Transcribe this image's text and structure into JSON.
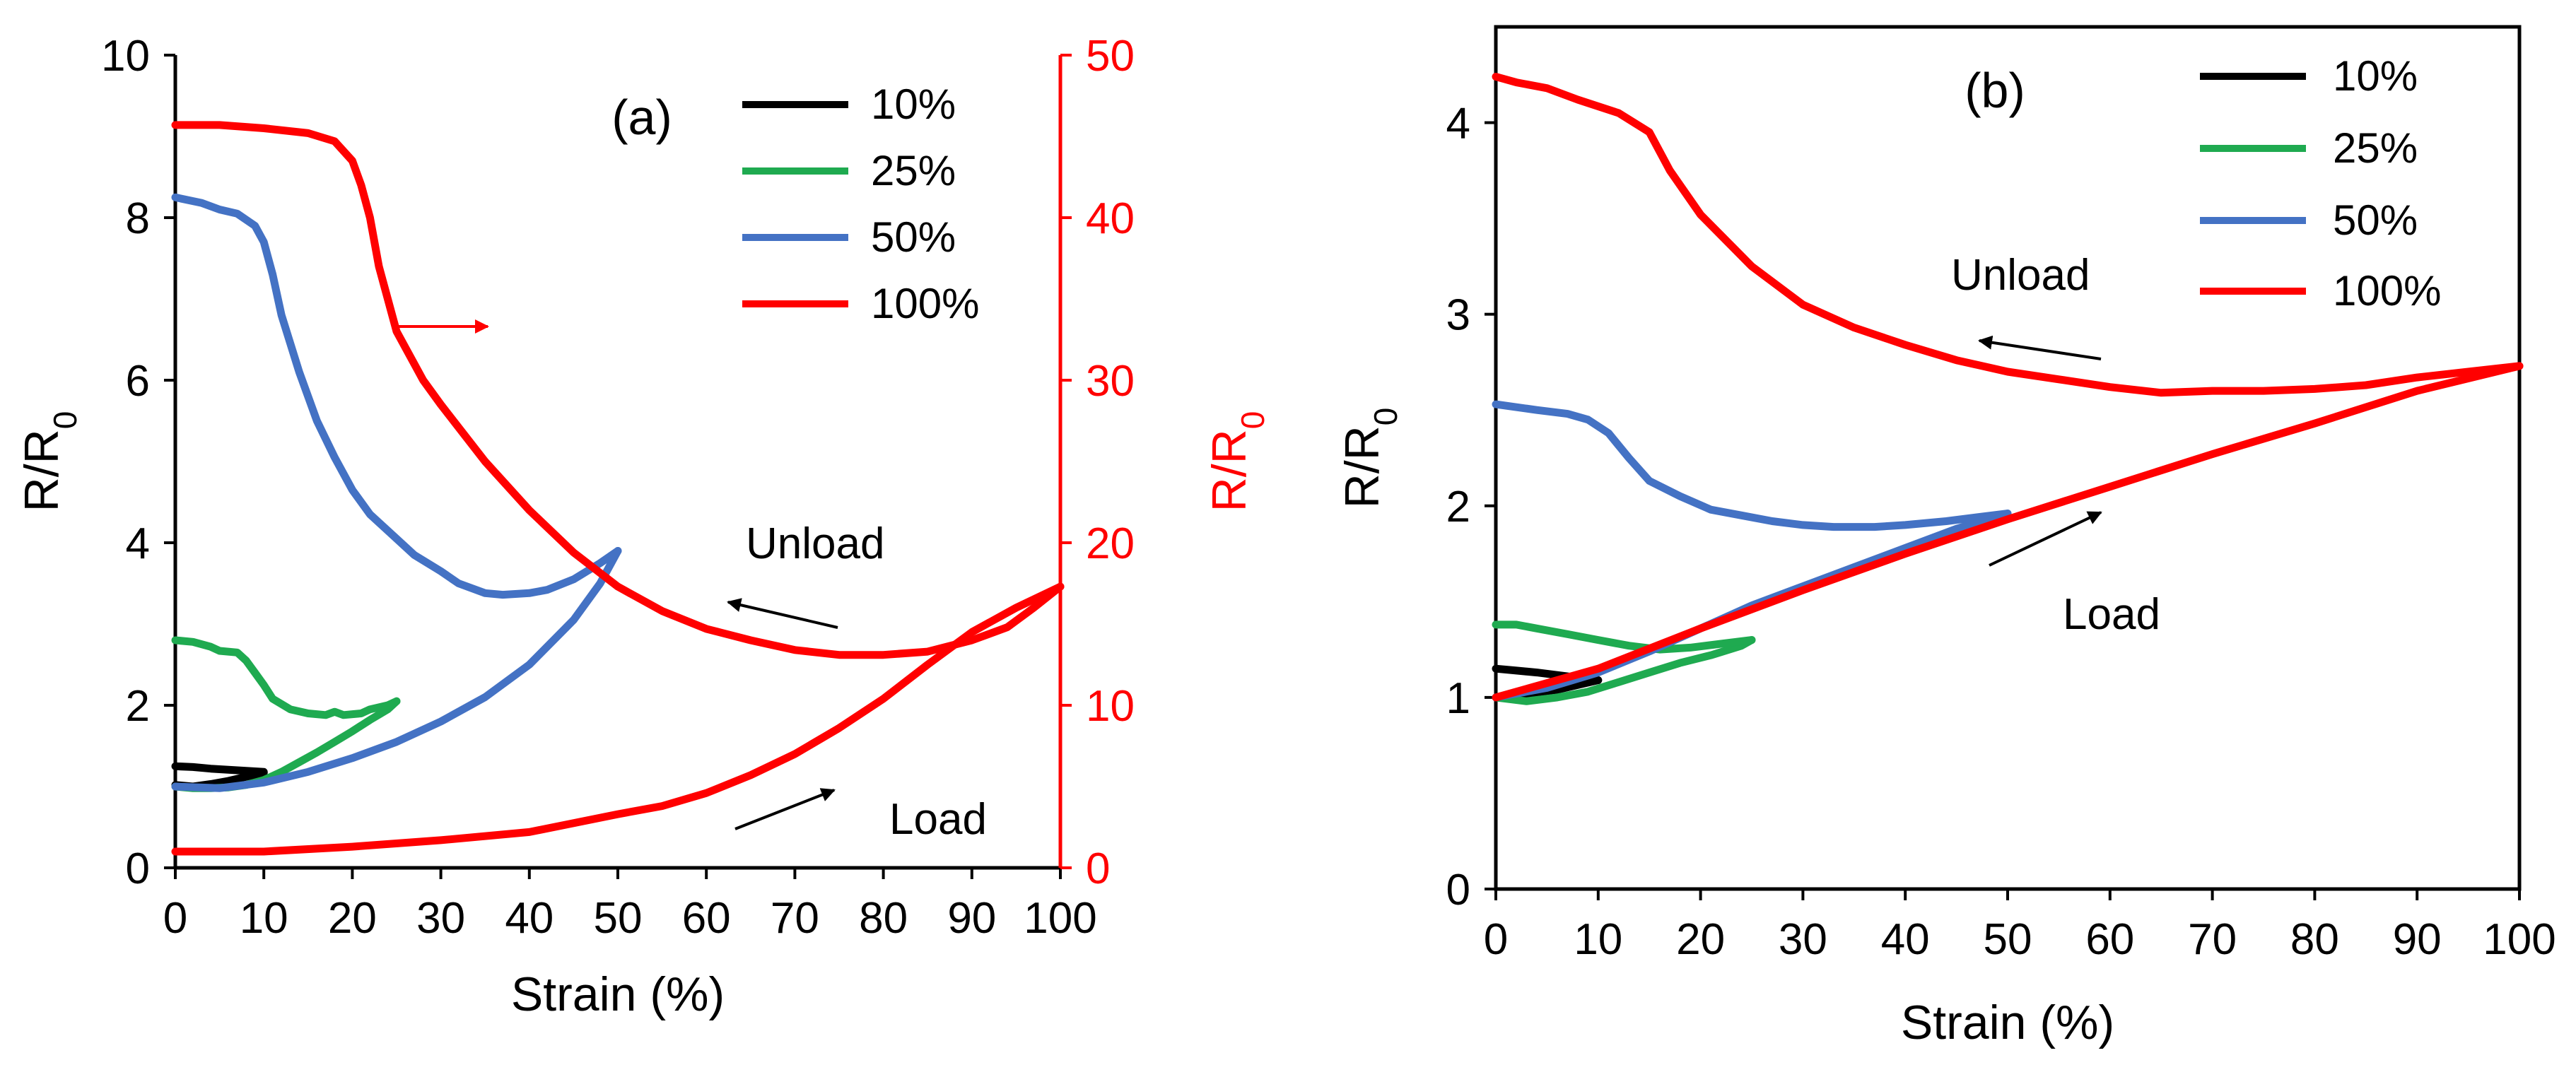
{
  "colors": {
    "s10": "#000000",
    "s25": "#1faa50",
    "s50": "#4472c4",
    "s100": "#ff0000",
    "axis": "#000000",
    "right_axis": "#ff0000"
  },
  "chart_data": [
    {
      "type": "line",
      "panel_label": "(a)",
      "xlabel": "Strain (%)",
      "ylabel": "R/R0",
      "ylabel_main": "R/R",
      "ylabel_sub": "0",
      "xlim": [
        0,
        100
      ],
      "ylim": [
        0,
        10
      ],
      "xticks": [
        0,
        10,
        20,
        30,
        40,
        50,
        60,
        70,
        80,
        90,
        100
      ],
      "yticks": [
        0,
        2,
        4,
        6,
        8,
        10
      ],
      "y2label": "R/R0",
      "y2label_main": "R/R",
      "y2label_sub": "0",
      "y2lim": [
        0,
        50
      ],
      "y2ticks": [
        0,
        10,
        20,
        30,
        40,
        50
      ],
      "legend": {
        "placement": "top-right",
        "labels": [
          "10%",
          "25%",
          "50%",
          "100%"
        ]
      },
      "annotations": {
        "unload": "Unload",
        "load": "Load"
      },
      "series": [
        {
          "name": "10%",
          "color_key": "s10",
          "axis": "left",
          "load": [
            [
              0,
              1.02
            ],
            [
              2,
              1.0
            ],
            [
              4,
              1.03
            ],
            [
              6,
              1.07
            ],
            [
              8,
              1.12
            ],
            [
              10,
              1.17
            ]
          ],
          "unload": [
            [
              10,
              1.18
            ],
            [
              7,
              1.2
            ],
            [
              4,
              1.22
            ],
            [
              2,
              1.24
            ],
            [
              0,
              1.25
            ]
          ]
        },
        {
          "name": "25%",
          "color_key": "s25",
          "axis": "left",
          "load": [
            [
              0,
              1.0
            ],
            [
              2,
              0.98
            ],
            [
              4,
              0.98
            ],
            [
              6,
              0.99
            ],
            [
              8,
              1.02
            ],
            [
              10,
              1.08
            ],
            [
              12,
              1.18
            ],
            [
              14,
              1.3
            ],
            [
              16,
              1.42
            ],
            [
              18,
              1.55
            ],
            [
              20,
              1.68
            ],
            [
              22,
              1.82
            ],
            [
              24,
              1.95
            ],
            [
              25,
              2.05
            ]
          ],
          "unload": [
            [
              25,
              2.05
            ],
            [
              24,
              2.0
            ],
            [
              22,
              1.95
            ],
            [
              21,
              1.9
            ],
            [
              19,
              1.88
            ],
            [
              18,
              1.92
            ],
            [
              17,
              1.88
            ],
            [
              15,
              1.9
            ],
            [
              13,
              1.95
            ],
            [
              11,
              2.08
            ],
            [
              10,
              2.25
            ],
            [
              9,
              2.4
            ],
            [
              8,
              2.55
            ],
            [
              7,
              2.65
            ],
            [
              5,
              2.67
            ],
            [
              4,
              2.72
            ],
            [
              2,
              2.78
            ],
            [
              0,
              2.8
            ]
          ]
        },
        {
          "name": "50%",
          "color_key": "s50",
          "axis": "left",
          "load": [
            [
              0,
              1.0
            ],
            [
              5,
              0.98
            ],
            [
              10,
              1.05
            ],
            [
              15,
              1.18
            ],
            [
              20,
              1.35
            ],
            [
              25,
              1.55
            ],
            [
              30,
              1.8
            ],
            [
              35,
              2.1
            ],
            [
              40,
              2.5
            ],
            [
              45,
              3.05
            ],
            [
              48,
              3.5
            ],
            [
              50,
              3.9
            ]
          ],
          "unload": [
            [
              50,
              3.9
            ],
            [
              48,
              3.75
            ],
            [
              45,
              3.55
            ],
            [
              42,
              3.42
            ],
            [
              40,
              3.38
            ],
            [
              37,
              3.36
            ],
            [
              35,
              3.38
            ],
            [
              32,
              3.5
            ],
            [
              30,
              3.65
            ],
            [
              27,
              3.85
            ],
            [
              25,
              4.05
            ],
            [
              22,
              4.35
            ],
            [
              20,
              4.65
            ],
            [
              18,
              5.05
            ],
            [
              16,
              5.5
            ],
            [
              14,
              6.1
            ],
            [
              12,
              6.8
            ],
            [
              11,
              7.3
            ],
            [
              10,
              7.7
            ],
            [
              9,
              7.9
            ],
            [
              7,
              8.05
            ],
            [
              5,
              8.1
            ],
            [
              3,
              8.18
            ],
            [
              0,
              8.25
            ]
          ]
        },
        {
          "name": "100%",
          "color_key": "s100",
          "axis": "right",
          "load": [
            [
              0,
              1.0
            ],
            [
              10,
              1.0
            ],
            [
              20,
              1.3
            ],
            [
              30,
              1.7
            ],
            [
              40,
              2.2
            ],
            [
              50,
              3.3
            ],
            [
              55,
              3.8
            ],
            [
              60,
              4.6
            ],
            [
              65,
              5.7
            ],
            [
              70,
              7.0
            ],
            [
              75,
              8.6
            ],
            [
              80,
              10.4
            ],
            [
              85,
              12.5
            ],
            [
              90,
              14.5
            ],
            [
              95,
              16.0
            ],
            [
              100,
              17.3
            ]
          ],
          "unload": [
            [
              100,
              17.3
            ],
            [
              97,
              16.0
            ],
            [
              94,
              14.8
            ],
            [
              90,
              14.0
            ],
            [
              85,
              13.3
            ],
            [
              80,
              13.1
            ],
            [
              75,
              13.1
            ],
            [
              70,
              13.4
            ],
            [
              65,
              14.0
            ],
            [
              60,
              14.7
            ],
            [
              55,
              15.8
            ],
            [
              50,
              17.3
            ],
            [
              45,
              19.4
            ],
            [
              40,
              22.0
            ],
            [
              35,
              25.0
            ],
            [
              30,
              28.5
            ],
            [
              28,
              30.0
            ],
            [
              25,
              33.0
            ],
            [
              23,
              37.0
            ],
            [
              22,
              40.0
            ],
            [
              21,
              42.0
            ],
            [
              20,
              43.5
            ],
            [
              18,
              44.7
            ],
            [
              15,
              45.2
            ],
            [
              10,
              45.5
            ],
            [
              5,
              45.7
            ],
            [
              0,
              45.7
            ]
          ]
        }
      ]
    },
    {
      "type": "line",
      "panel_label": "(b)",
      "xlabel": "Strain (%)",
      "ylabel": "R/R0",
      "ylabel_main": "R/R",
      "ylabel_sub": "0",
      "xlim": [
        0,
        100
      ],
      "ylim": [
        0,
        4.5
      ],
      "xticks": [
        0,
        10,
        20,
        30,
        40,
        50,
        60,
        70,
        80,
        90,
        100
      ],
      "yticks": [
        0,
        1,
        2,
        3,
        4
      ],
      "legend": {
        "placement": "top-right",
        "labels": [
          "10%",
          "25%",
          "50%",
          "100%"
        ]
      },
      "annotations": {
        "unload": "Unload",
        "load": "Load"
      },
      "series": [
        {
          "name": "10%",
          "color_key": "s10",
          "load": [
            [
              0,
              1.0
            ],
            [
              3,
              1.02
            ],
            [
              6,
              1.04
            ],
            [
              10,
              1.09
            ]
          ],
          "unload": [
            [
              10,
              1.09
            ],
            [
              7,
              1.11
            ],
            [
              4,
              1.13
            ],
            [
              2,
              1.14
            ],
            [
              0,
              1.15
            ]
          ]
        },
        {
          "name": "25%",
          "color_key": "s25",
          "load": [
            [
              0,
              1.0
            ],
            [
              3,
              0.98
            ],
            [
              6,
              1.0
            ],
            [
              9,
              1.03
            ],
            [
              12,
              1.08
            ],
            [
              15,
              1.13
            ],
            [
              18,
              1.18
            ],
            [
              21,
              1.22
            ],
            [
              24,
              1.27
            ],
            [
              25,
              1.3
            ]
          ],
          "unload": [
            [
              25,
              1.3
            ],
            [
              22,
              1.28
            ],
            [
              19,
              1.26
            ],
            [
              16,
              1.25
            ],
            [
              13,
              1.27
            ],
            [
              10,
              1.3
            ],
            [
              7,
              1.33
            ],
            [
              4,
              1.36
            ],
            [
              2,
              1.38
            ],
            [
              0,
              1.38
            ]
          ]
        },
        {
          "name": "50%",
          "color_key": "s50",
          "load": [
            [
              0,
              1.0
            ],
            [
              5,
              1.05
            ],
            [
              10,
              1.13
            ],
            [
              15,
              1.24
            ],
            [
              20,
              1.36
            ],
            [
              25,
              1.48
            ],
            [
              30,
              1.58
            ],
            [
              35,
              1.68
            ],
            [
              40,
              1.78
            ],
            [
              45,
              1.88
            ],
            [
              50,
              1.96
            ]
          ],
          "unload": [
            [
              50,
              1.96
            ],
            [
              47,
              1.94
            ],
            [
              44,
              1.92
            ],
            [
              40,
              1.9
            ],
            [
              37,
              1.89
            ],
            [
              33,
              1.89
            ],
            [
              30,
              1.9
            ],
            [
              27,
              1.92
            ],
            [
              24,
              1.95
            ],
            [
              21,
              1.98
            ],
            [
              18,
              2.05
            ],
            [
              15,
              2.13
            ],
            [
              13,
              2.25
            ],
            [
              11,
              2.38
            ],
            [
              9,
              2.45
            ],
            [
              7,
              2.48
            ],
            [
              4,
              2.5
            ],
            [
              0,
              2.53
            ]
          ]
        },
        {
          "name": "100%",
          "color_key": "s100",
          "load": [
            [
              0,
              1.0
            ],
            [
              10,
              1.15
            ],
            [
              20,
              1.36
            ],
            [
              30,
              1.56
            ],
            [
              40,
              1.75
            ],
            [
              50,
              1.93
            ],
            [
              60,
              2.1
            ],
            [
              70,
              2.27
            ],
            [
              80,
              2.43
            ],
            [
              90,
              2.6
            ],
            [
              100,
              2.73
            ]
          ],
          "unload": [
            [
              100,
              2.73
            ],
            [
              95,
              2.7
            ],
            [
              90,
              2.67
            ],
            [
              85,
              2.63
            ],
            [
              80,
              2.61
            ],
            [
              75,
              2.6
            ],
            [
              70,
              2.6
            ],
            [
              65,
              2.59
            ],
            [
              60,
              2.62
            ],
            [
              55,
              2.66
            ],
            [
              50,
              2.7
            ],
            [
              45,
              2.76
            ],
            [
              40,
              2.84
            ],
            [
              35,
              2.93
            ],
            [
              30,
              3.05
            ],
            [
              25,
              3.25
            ],
            [
              20,
              3.52
            ],
            [
              17,
              3.75
            ],
            [
              15,
              3.95
            ],
            [
              12,
              4.05
            ],
            [
              8,
              4.12
            ],
            [
              5,
              4.18
            ],
            [
              2,
              4.21
            ],
            [
              0,
              4.24
            ]
          ]
        }
      ]
    }
  ]
}
